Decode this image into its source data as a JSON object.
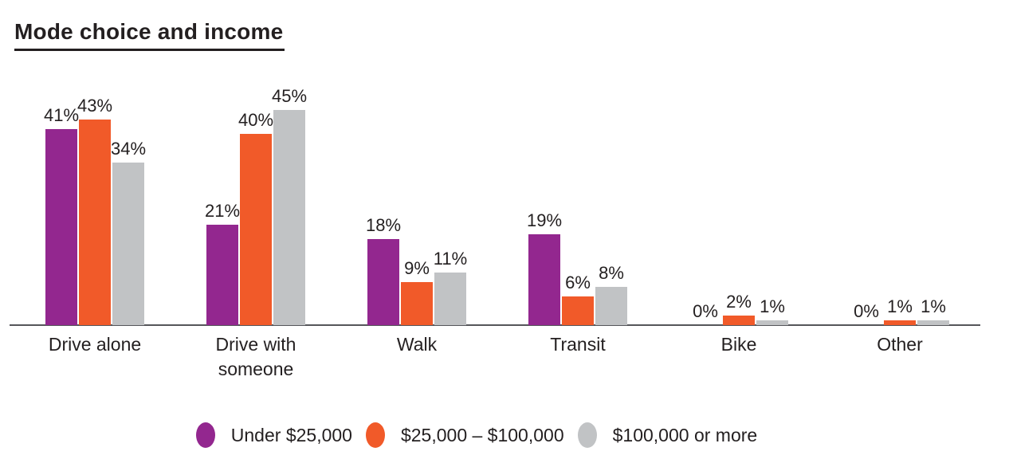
{
  "title": "Mode choice and income",
  "chart_data": {
    "type": "bar",
    "title": "Mode choice and income",
    "categories": [
      "Drive alone",
      "Drive with someone",
      "Walk",
      "Transit",
      "Bike",
      "Other"
    ],
    "series": [
      {
        "name": "Under $25,000",
        "color": "#93278f",
        "values": [
          41,
          21,
          18,
          19,
          0,
          0
        ]
      },
      {
        "name": "$25,000 – $100,000",
        "color": "#f15a29",
        "values": [
          43,
          40,
          9,
          6,
          2,
          1
        ]
      },
      {
        "name": "$100,000 or more",
        "color": "#c1c3c5",
        "values": [
          34,
          45,
          11,
          8,
          1,
          1
        ]
      }
    ],
    "value_suffix": "%",
    "data_labels": true,
    "xlabel": "",
    "ylabel": "",
    "ylim": [
      0,
      48
    ],
    "grid": false,
    "legend_position": "bottom",
    "axis_color": "#55565a",
    "text_color": "#231f20",
    "background": "#ffffff"
  }
}
